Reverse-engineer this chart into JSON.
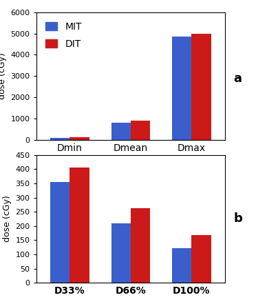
{
  "chart_a": {
    "categories": [
      "Dmin",
      "Dmean",
      "Dmax"
    ],
    "MIT_values": [
      90,
      810,
      4850
    ],
    "DIT_values": [
      130,
      890,
      5000
    ],
    "ylim": [
      0,
      6000
    ],
    "yticks": [
      0,
      1000,
      2000,
      3000,
      4000,
      5000,
      6000
    ],
    "ylabel": "dose (cGy)",
    "label": "a"
  },
  "chart_b": {
    "categories": [
      "D33%",
      "D66%",
      "D100%"
    ],
    "MIT_values": [
      355,
      210,
      122
    ],
    "DIT_values": [
      405,
      263,
      168
    ],
    "ylim": [
      0,
      450
    ],
    "yticks": [
      0,
      50,
      100,
      150,
      200,
      250,
      300,
      350,
      400,
      450
    ],
    "ylabel": "dose (cGy)",
    "label": "b"
  },
  "legend": {
    "MIT_label": "MIT",
    "DIT_label": "DIT"
  },
  "bar_width": 0.32,
  "blue_color": "#3a5fcd",
  "red_color": "#cc1a1a",
  "category_fontsize": 10,
  "ylabel_fontsize": 9,
  "tick_fontsize": 8,
  "legend_fontsize": 10,
  "label_fontsize": 13
}
